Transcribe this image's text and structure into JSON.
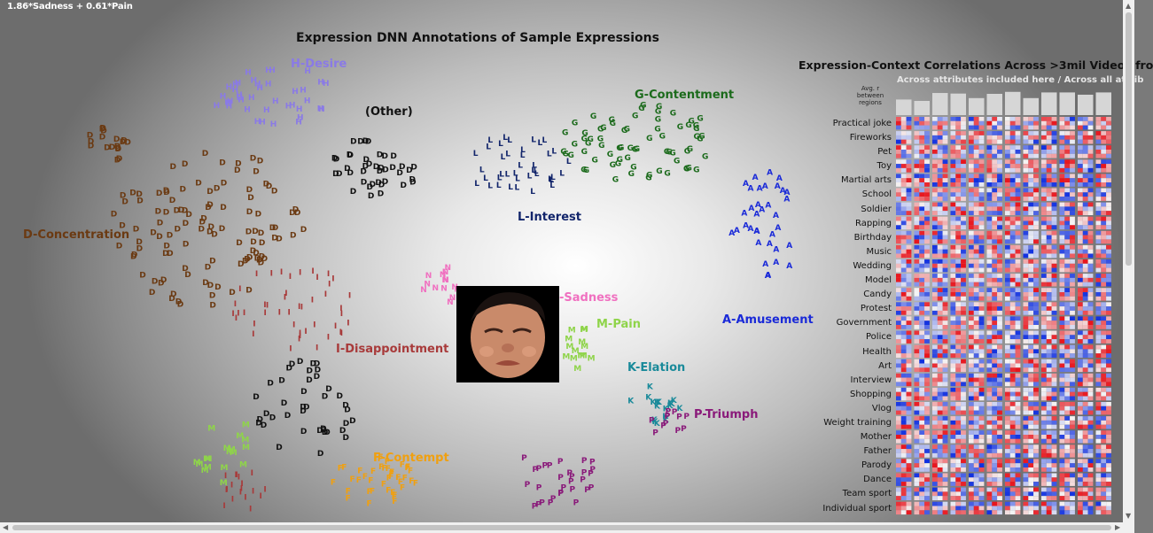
{
  "formula": "1.86*Sadness + 0.61*Pain",
  "plot_title": "Expression DNN Annotations of Sample Expressions",
  "clusters": [
    {
      "label": "H-Desire",
      "color": "#8a7ae6",
      "letter": "H"
    },
    {
      "label": "(Other)",
      "color": "#111111",
      "letter": "D"
    },
    {
      "label": "G-Contentment",
      "color": "#1c6b1c",
      "letter": "G"
    },
    {
      "label": "D-Concentration",
      "color": "#6b3a12",
      "letter": "D"
    },
    {
      "label": "L-Interest",
      "color": "#12256b",
      "letter": "L"
    },
    {
      "label": "-Sadness",
      "color": "#f070c0",
      "letter": "N"
    },
    {
      "label": "M-Pain",
      "color": "#8fd44a",
      "letter": "M"
    },
    {
      "label": "A-Amusement",
      "color": "#1a2ad8",
      "letter": "A"
    },
    {
      "label": "I-Disappointment",
      "color": "#a83a3a",
      "letter": "I"
    },
    {
      "label": "K-Elation",
      "color": "#1a8a9a",
      "letter": "K"
    },
    {
      "label": "P-Triumph",
      "color": "#8a1a7a",
      "letter": "P"
    },
    {
      "label": "F-Contempt",
      "color": "#f0a010",
      "letter": "F"
    }
  ],
  "heatmap_title": "Expression-Context Correlations Across >3mil Videos fro",
  "subtitle": "Across attributes included here  /  Across all attrib",
  "avg_label": "Avg. r between regions",
  "rows": [
    "Practical joke",
    "Fireworks",
    "Pet",
    "Toy",
    "Martial arts",
    "School",
    "Soldier",
    "Rapping",
    "Birthday",
    "Music",
    "Wedding",
    "Model",
    "Candy",
    "Protest",
    "Government",
    "Police",
    "Health",
    "Art",
    "Interview",
    "Shopping",
    "Vlog",
    "Weight training",
    "Mother",
    "Father",
    "Parody",
    "Dance",
    "Team sport",
    "Individual sport"
  ],
  "colors": {
    "pos": "#e8141c",
    "neg": "#1030e0",
    "neutral": "#f4f4f4"
  }
}
